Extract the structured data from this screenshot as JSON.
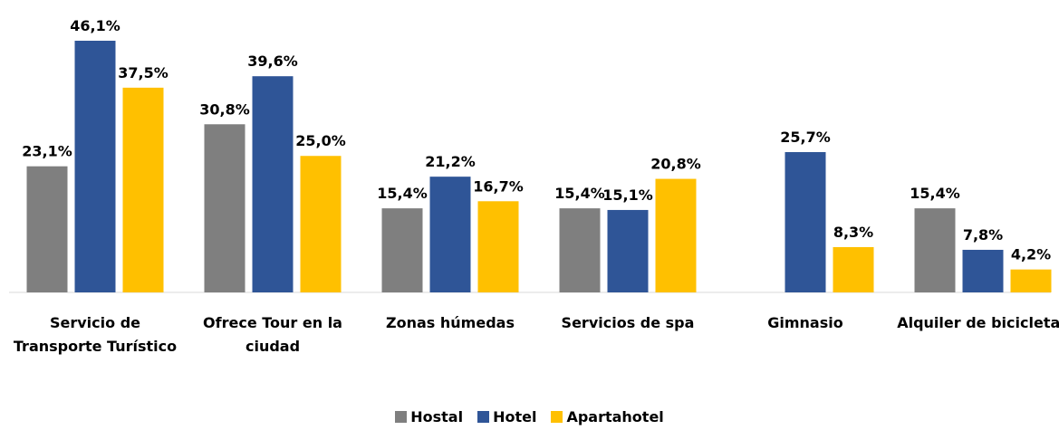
{
  "chart_data": {
    "type": "bar",
    "categories": [
      "Servicio de Transporte Turístico",
      "Ofrece Tour en la ciudad",
      "Zonas húmedas",
      "Servicios de spa",
      "Gimnasio",
      "Alquiler de bicicletas"
    ],
    "series": [
      {
        "name": "Hostal",
        "color": "#7f7f7f",
        "values": [
          23.1,
          30.8,
          15.4,
          15.4,
          null,
          15.4
        ],
        "value_labels": [
          "23,1%",
          "30,8%",
          "15,4%",
          "15,4%",
          null,
          "15,4%"
        ]
      },
      {
        "name": "Hotel",
        "color": "#2f5597",
        "values": [
          46.1,
          39.6,
          21.2,
          15.1,
          25.7,
          7.8
        ],
        "value_labels": [
          "46,1%",
          "39,6%",
          "21,2%",
          "15,1%",
          "25,7%",
          "7,8%"
        ]
      },
      {
        "name": "Apartahotel",
        "color": "#ffc000",
        "values": [
          37.5,
          25.0,
          16.7,
          20.8,
          8.3,
          4.2
        ],
        "value_labels": [
          "37,5%",
          "25,0%",
          "16,7%",
          "20,8%",
          "8,3%",
          "4,2%"
        ]
      }
    ],
    "legend": "bottom"
  }
}
